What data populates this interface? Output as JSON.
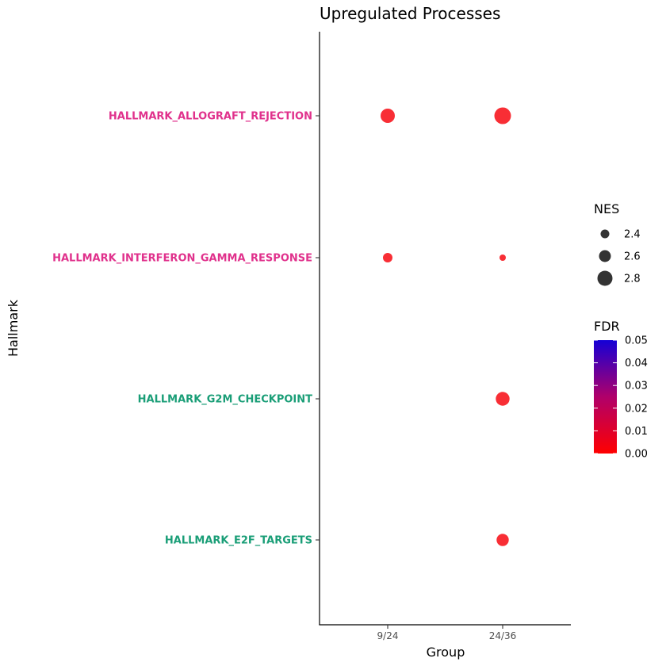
{
  "chart_data": {
    "type": "scatter",
    "title": "Upregulated Processes",
    "xlabel": "Group",
    "ylabel": "Hallmark",
    "categories_x": [
      "9/24",
      "24/36"
    ],
    "categories_y": [
      {
        "label": "HALLMARK_ALLOGRAFT_REJECTION",
        "color": "#e0318c"
      },
      {
        "label": "HALLMARK_INTERFERON_GAMMA_RESPONSE",
        "color": "#e0318c"
      },
      {
        "label": "HALLMARK_G2M_CHECKPOINT",
        "color": "#1a9e77"
      },
      {
        "label": "HALLMARK_E2F_TARGETS",
        "color": "#1a9e77"
      }
    ],
    "points": [
      {
        "x": "9/24",
        "y": "HALLMARK_ALLOGRAFT_REJECTION",
        "nes": 2.75,
        "fdr": 0.002
      },
      {
        "x": "24/36",
        "y": "HALLMARK_ALLOGRAFT_REJECTION",
        "nes": 2.9,
        "fdr": 0.002
      },
      {
        "x": "9/24",
        "y": "HALLMARK_INTERFERON_GAMMA_RESPONSE",
        "nes": 2.45,
        "fdr": 0.002
      },
      {
        "x": "24/36",
        "y": "HALLMARK_INTERFERON_GAMMA_RESPONSE",
        "nes": 2.25,
        "fdr": 0.002
      },
      {
        "x": "24/36",
        "y": "HALLMARK_G2M_CHECKPOINT",
        "nes": 2.72,
        "fdr": 0.002
      },
      {
        "x": "24/36",
        "y": "HALLMARK_E2F_TARGETS",
        "nes": 2.62,
        "fdr": 0.002
      }
    ],
    "size_legend": {
      "title": "NES",
      "values": [
        2.4,
        2.6,
        2.8
      ],
      "labels": [
        "2.4",
        "2.6",
        "2.8"
      ],
      "range": [
        2.2,
        2.95
      ]
    },
    "color_legend": {
      "title": "FDR",
      "labels": [
        "0.05",
        "0.04",
        "0.03",
        "0.02",
        "0.01",
        "0.00"
      ],
      "range": [
        0.0,
        0.05
      ],
      "low_color": "#ff0000",
      "high_color": "#1500d6"
    },
    "grid": false,
    "legend_position": "right"
  }
}
